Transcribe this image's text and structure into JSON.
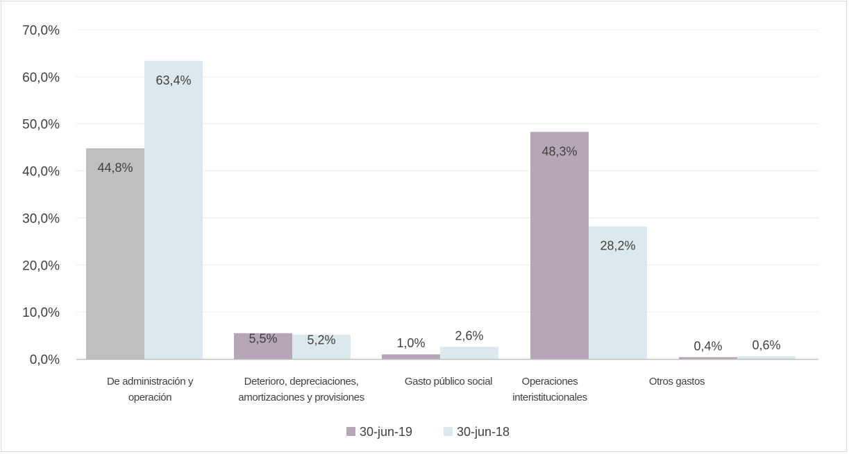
{
  "chart_data": {
    "type": "bar",
    "title": "",
    "xlabel": "",
    "ylabel": "",
    "ylim": [
      0,
      70
    ],
    "yticks": [
      "0,0%",
      "10,0%",
      "20,0%",
      "30,0%",
      "40,0%",
      "50,0%",
      "60,0%",
      "70,0%"
    ],
    "grid": true,
    "legend_position": "bottom",
    "categories": [
      [
        "De administración y",
        "operación"
      ],
      [
        "Deterioro, depreciaciones,",
        "amortizaciones y provisiones"
      ],
      [
        "Gasto público social"
      ],
      [
        "Operaciones",
        "interistitucionales"
      ],
      [
        "Otros gastos"
      ]
    ],
    "series": [
      {
        "name": "30-jun-19",
        "values": [
          44.8,
          5.5,
          1.0,
          48.3,
          0.4
        ],
        "labels": [
          "44,8%",
          "5,5%",
          "1,0%",
          "48,3%",
          "0,4%"
        ],
        "colors": [
          "#bfbfbf",
          "#b6a7b6",
          "#b6a7b6",
          "#b6a7b6",
          "#b6a7b6"
        ]
      },
      {
        "name": "30-jun-18",
        "values": [
          63.4,
          5.2,
          2.6,
          28.2,
          0.6
        ],
        "labels": [
          "63,4%",
          "5,2%",
          "2,6%",
          "28,2%",
          "0,6%"
        ],
        "colors": [
          "#dbe9ec",
          "#dbe9ec",
          "#dbe9ec",
          "#dbe9ec",
          "#dbe9ec"
        ]
      }
    ],
    "legend_colors": [
      "#b6a7b6",
      "#dbe9ec"
    ]
  }
}
